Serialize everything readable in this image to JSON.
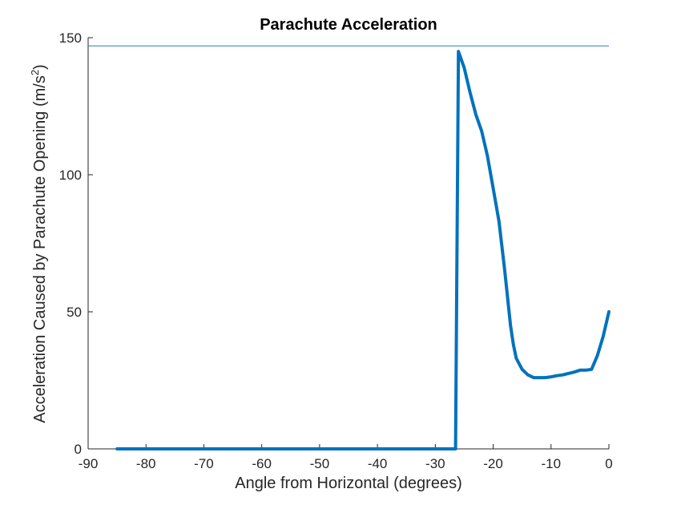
{
  "chart_data": {
    "type": "line",
    "title": "Parachute Acceleration",
    "xlabel": "Angle from Horizontal (degrees)",
    "ylabel_main": "Acceleration Caused by Parachute Opening (m/s",
    "ylabel_sup": "2",
    "ylabel_end": ")",
    "xlim": [
      -90,
      0
    ],
    "ylim": [
      0,
      150
    ],
    "xticks": [
      "-90",
      "-80",
      "-70",
      "-60",
      "-50",
      "-40",
      "-30",
      "-20",
      "-10",
      "0"
    ],
    "yticks": [
      "0",
      "50",
      "100",
      "150"
    ],
    "grid": false,
    "reference_line": {
      "y": 147,
      "color": "#2a7fb0"
    },
    "series": [
      {
        "color": "#0072bd",
        "x": [
          -85,
          -80,
          -70,
          -60,
          -50,
          -40,
          -30,
          -27,
          -26.5,
          -26,
          -25.5,
          -25,
          -24,
          -23,
          -22,
          -21,
          -20,
          -19,
          -18,
          -17.5,
          -17,
          -16.5,
          -16,
          -15,
          -14,
          -13,
          -12,
          -11,
          -10,
          -9,
          -8,
          -7,
          -6,
          -5,
          -4,
          -3,
          -2,
          -1,
          0
        ],
        "y": [
          0,
          0,
          0,
          0,
          0,
          0,
          0,
          0,
          0,
          145,
          142,
          139,
          130,
          122,
          116,
          107,
          95,
          83,
          65,
          55,
          45,
          38,
          33,
          29,
          27,
          26,
          26,
          26,
          26.3,
          26.7,
          27,
          27.5,
          28,
          28.7,
          28.7,
          29,
          34,
          41,
          50
        ]
      }
    ]
  }
}
